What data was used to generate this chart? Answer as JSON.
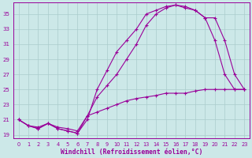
{
  "bg_color": "#cce8e8",
  "grid_color": "#aacccc",
  "line_color": "#990099",
  "marker_color": "#990099",
  "xlabel": "Windchill (Refroidissement éolien,°C)",
  "xlim": [
    -0.5,
    23.5
  ],
  "ylim": [
    18.5,
    36.5
  ],
  "yticks": [
    19,
    21,
    23,
    25,
    27,
    29,
    31,
    33,
    35
  ],
  "xticks": [
    0,
    1,
    2,
    3,
    4,
    5,
    6,
    7,
    8,
    9,
    10,
    11,
    12,
    13,
    14,
    15,
    16,
    17,
    18,
    19,
    20,
    21,
    22,
    23
  ],
  "curve1_x": [
    0,
    1,
    2,
    3,
    4,
    5,
    6,
    7,
    8,
    9,
    10,
    11,
    12,
    13,
    14,
    15,
    16,
    17,
    18,
    19,
    20,
    21,
    22,
    23
  ],
  "curve1_y": [
    21.0,
    20.2,
    19.8,
    20.5,
    19.8,
    19.5,
    19.2,
    21.0,
    25.0,
    27.5,
    30.0,
    31.5,
    33.0,
    35.0,
    35.5,
    36.0,
    36.2,
    35.8,
    35.5,
    34.5,
    34.5,
    31.5,
    27.0,
    25.0
  ],
  "curve2_x": [
    0,
    1,
    2,
    3,
    4,
    5,
    6,
    7,
    8,
    9,
    10,
    11,
    12,
    13,
    14,
    15,
    16,
    17,
    18,
    19,
    20,
    21,
    22,
    23
  ],
  "curve2_y": [
    21.0,
    20.2,
    19.8,
    20.5,
    19.8,
    19.5,
    19.2,
    21.5,
    24.0,
    25.5,
    27.0,
    29.0,
    31.0,
    33.5,
    35.0,
    35.8,
    36.2,
    36.0,
    35.5,
    34.5,
    31.5,
    27.0,
    25.0,
    25.0
  ],
  "curve3_x": [
    0,
    1,
    2,
    3,
    4,
    5,
    6,
    7,
    8,
    9,
    10,
    11,
    12,
    13,
    14,
    15,
    16,
    17,
    18,
    19,
    20,
    21,
    22,
    23
  ],
  "curve3_y": [
    21.0,
    20.2,
    20.0,
    20.5,
    20.0,
    19.8,
    19.5,
    21.5,
    22.0,
    22.5,
    23.0,
    23.5,
    23.8,
    24.0,
    24.2,
    24.5,
    24.5,
    24.5,
    24.8,
    25.0,
    25.0,
    25.0,
    25.0,
    25.0
  ]
}
